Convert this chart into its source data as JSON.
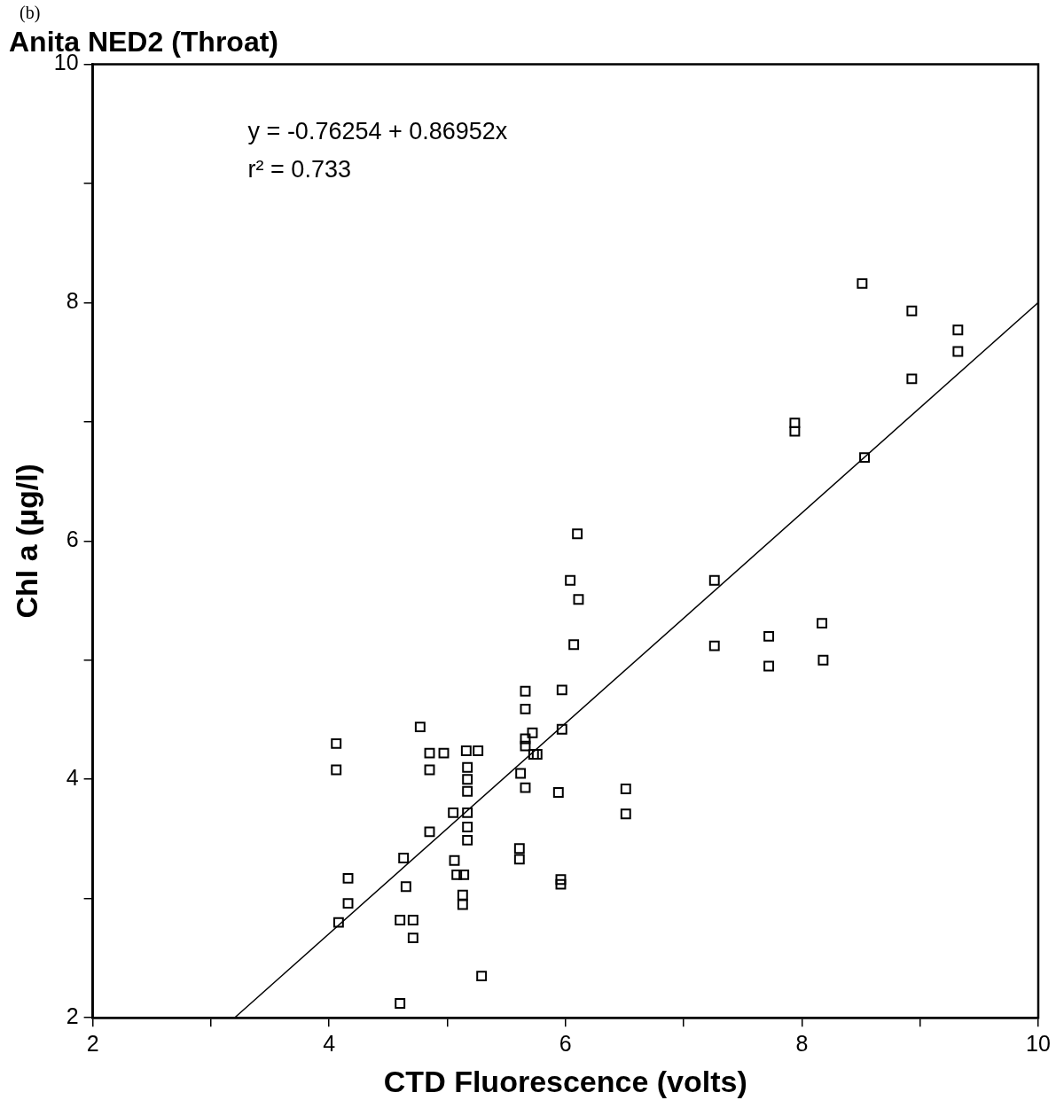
{
  "chart_data": {
    "type": "scatter",
    "title": "Anita NED2 (Throat)",
    "xlabel": "CTD Fluorescence (volts)",
    "ylabel": "Chl a (µg/l)",
    "annotations": [
      "(b)",
      "y = -0.76254 + 0.86952x",
      "r² = 0.733"
    ],
    "xlim": [
      2,
      10
    ],
    "ylim": [
      2,
      10
    ],
    "xticks": [
      2,
      {
        "value": 3,
        "label": null
      },
      4,
      {
        "value": 5,
        "label": null
      },
      6,
      {
        "value": 7,
        "label": null
      },
      8,
      {
        "value": 9,
        "label": null
      },
      10
    ],
    "yticks": [
      2,
      {
        "value": 3,
        "label": null
      },
      4,
      {
        "value": 5,
        "label": null
      },
      6,
      {
        "value": 7,
        "label": null
      },
      8,
      {
        "value": 9,
        "label": null
      },
      10
    ],
    "grid": false,
    "legend": false,
    "marker": "square",
    "series": [
      {
        "color": "#000000",
        "x": [
          4.06,
          4.06,
          4.08,
          4.16,
          4.16,
          4.63,
          4.65,
          4.6,
          4.71,
          4.71,
          4.6,
          4.77,
          5.05,
          5.06,
          5.08,
          4.85,
          4.85,
          4.85,
          4.97,
          5.16,
          5.26,
          5.17,
          5.17,
          5.17,
          5.17,
          5.17,
          5.17,
          5.14,
          5.13,
          5.13,
          5.29,
          5.62,
          5.61,
          5.61,
          5.66,
          5.66,
          5.66,
          5.66,
          5.66,
          5.72,
          5.73,
          5.76,
          5.94,
          5.96,
          5.96,
          5.97,
          5.97,
          6.1,
          6.04,
          6.11,
          6.07,
          6.51,
          6.51,
          7.26,
          7.26,
          7.72,
          7.72,
          8.17,
          8.18,
          7.94,
          7.94,
          8.53,
          8.51,
          8.93,
          8.93,
          9.32,
          9.32
        ],
        "values": [
          4.3,
          4.08,
          2.8,
          3.17,
          2.96,
          3.34,
          3.1,
          2.82,
          2.82,
          2.67,
          2.12,
          4.44,
          3.72,
          3.32,
          3.2,
          4.22,
          4.08,
          3.56,
          4.22,
          4.24,
          4.24,
          4.1,
          4.0,
          3.9,
          3.72,
          3.6,
          3.49,
          3.2,
          3.03,
          2.95,
          2.35,
          4.05,
          3.42,
          3.33,
          4.74,
          4.59,
          4.34,
          4.28,
          3.93,
          4.39,
          4.21,
          4.21,
          3.89,
          3.16,
          3.12,
          4.75,
          4.42,
          6.06,
          5.67,
          5.51,
          5.13,
          3.92,
          3.71,
          5.67,
          5.12,
          5.2,
          4.95,
          5.31,
          5.0,
          6.99,
          6.92,
          6.7,
          8.16,
          7.93,
          7.36,
          7.77,
          7.59
        ]
      },
      {
        "type": "line",
        "color": "#000000",
        "line_style": "solid",
        "marker": "none",
        "x": [
          3.2,
          10
        ],
        "values": [
          2.0,
          8.0
        ]
      }
    ]
  }
}
